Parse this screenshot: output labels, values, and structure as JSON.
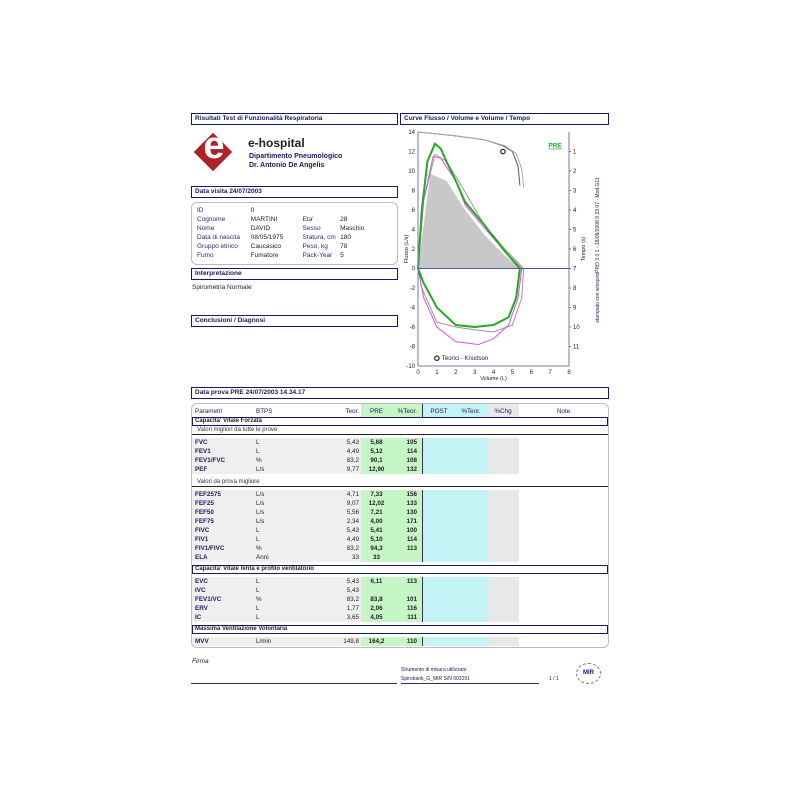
{
  "header": {
    "left_title": "Risultati Test di Funzionalità Respiratoria",
    "right_title": "Curve Flusso / Volume e Volume / Tempo"
  },
  "hospital": {
    "logo_letter": "e",
    "name": "e-hospital",
    "department": "Dipartimento Pneumologico",
    "doctor": "Dr. Antonio De Angelis"
  },
  "visit": {
    "title": "Data visita 24/07/2003"
  },
  "patient": [
    [
      "ID",
      "0",
      "",
      ""
    ],
    [
      "Cognome",
      "MARTINI",
      "Eta'",
      "28"
    ],
    [
      "Nome",
      "DAVID",
      "Sesso",
      "Maschio"
    ],
    [
      "Data di nascita",
      "08/05/1975",
      "Statura, cm",
      "180"
    ],
    [
      "Gruppo etnico",
      "Caucasico",
      "Peso, kg",
      "78"
    ],
    [
      "Fumo",
      "Fumatore",
      "Pack-Year",
      "5"
    ]
  ],
  "interpretation": {
    "title": "Interpretazione",
    "text": "Spirometria Normale"
  },
  "conclusions": {
    "title": "Conclusioni / Diagnosi"
  },
  "chart_data": {
    "type": "line",
    "xlabel": "Volume (L)",
    "ylabel": "Flusso (L/s)",
    "y2label": "Tempo (s)",
    "xlim": [
      0,
      8
    ],
    "ylim": [
      -10,
      14
    ],
    "y2lim": [
      0,
      12
    ],
    "y2_inverted": true,
    "xticks": [
      "0",
      "1",
      "2",
      "3",
      "4",
      "5",
      "6",
      "7",
      "8"
    ],
    "yticks": [
      "14",
      "12",
      "10",
      "8",
      "6",
      "4",
      "2",
      "0",
      "-2",
      "-4",
      "-6",
      "-8",
      "-10"
    ],
    "y2ticks": [
      "1",
      "2",
      "3",
      "4",
      "5",
      "6",
      "7",
      "8",
      "9",
      "10",
      "11"
    ],
    "legend_label": "PRE",
    "legend_color": "#22aa22",
    "marker_label": "Teorici - Knudson",
    "side_text": "stampato con winspiroPRO 3.0.1 - 18/09/2008 9.23.07 - Mod.G11",
    "series": [
      {
        "color": "#c8c8c8",
        "fill": true,
        "points": [
          [
            0,
            0
          ],
          [
            0.65,
            9.7
          ],
          [
            1.5,
            9
          ],
          [
            2.5,
            6
          ],
          [
            3.5,
            3.5
          ],
          [
            4.5,
            1.5
          ],
          [
            5.43,
            0
          ]
        ]
      },
      {
        "color": "#999999",
        "points": [
          [
            0,
            0
          ],
          [
            0.3,
            7
          ],
          [
            0.9,
            11.7
          ],
          [
            1.5,
            11
          ],
          [
            2.3,
            8.5
          ],
          [
            3.5,
            4.5
          ],
          [
            4.6,
            2
          ],
          [
            5.6,
            0
          ],
          [
            5.5,
            -3
          ],
          [
            5,
            -5.8
          ],
          [
            4,
            -6.5
          ],
          [
            3,
            -6.3
          ],
          [
            2,
            -6
          ],
          [
            1,
            -5.5
          ],
          [
            0.2,
            -2
          ],
          [
            0,
            0
          ]
        ]
      },
      {
        "color": "#dd55dd",
        "points": [
          [
            0,
            0
          ],
          [
            0.3,
            7
          ],
          [
            0.8,
            11.5
          ],
          [
            1.2,
            11.3
          ],
          [
            2,
            9
          ],
          [
            2.5,
            6.5
          ],
          [
            3.5,
            4.2
          ],
          [
            4.5,
            2
          ],
          [
            5.5,
            0
          ],
          [
            5.3,
            -3
          ],
          [
            4.8,
            -5.8
          ],
          [
            4,
            -7.2
          ],
          [
            3.2,
            -7.8
          ],
          [
            2,
            -7.5
          ],
          [
            1,
            -6
          ],
          [
            0.3,
            -3
          ],
          [
            0,
            0
          ]
        ]
      },
      {
        "color": "#22aa22",
        "width": 2,
        "points": [
          [
            0,
            0
          ],
          [
            0.2,
            6
          ],
          [
            0.5,
            11
          ],
          [
            0.9,
            12.8
          ],
          [
            1.2,
            12.3
          ],
          [
            1.5,
            11
          ],
          [
            2,
            9
          ],
          [
            2.5,
            6.8
          ],
          [
            3.5,
            4.5
          ],
          [
            4.5,
            2
          ],
          [
            5.4,
            0
          ],
          [
            5.2,
            -3
          ],
          [
            4.8,
            -5
          ],
          [
            4,
            -5.8
          ],
          [
            3,
            -6
          ],
          [
            2,
            -5.8
          ],
          [
            1,
            -4
          ],
          [
            0.3,
            -1.5
          ],
          [
            0,
            0
          ]
        ]
      },
      {
        "color": "#555566",
        "points": [
          [
            0,
            14
          ],
          [
            2,
            13.6
          ],
          [
            3.5,
            13.2
          ],
          [
            4.5,
            12.6
          ],
          [
            5,
            12
          ],
          [
            5.3,
            10.5
          ],
          [
            5.4,
            8.5
          ]
        ]
      },
      {
        "color": "#aaaaaa",
        "points": [
          [
            0,
            14
          ],
          [
            2,
            13.6
          ],
          [
            3.5,
            13.2
          ],
          [
            4.6,
            12.6
          ],
          [
            5.2,
            11.8
          ],
          [
            5.5,
            10.2
          ],
          [
            5.6,
            8.3
          ]
        ]
      }
    ],
    "predicted_marker": [
      4.5,
      12
    ]
  },
  "test": {
    "title": "Data prova PRE 24/07/2003    14.34.17"
  },
  "table": {
    "columns": [
      "Parametri",
      "BTPS",
      "Teor.",
      "PRE",
      "%Teor.",
      "POST",
      "%Teor.",
      "%Chg",
      "Note"
    ],
    "groups": [
      {
        "section": "Capacita' Vitale Forzata",
        "sub": "Valori migliori da tutte le prove",
        "rows": [
          [
            "FVC",
            "L",
            "5,43",
            "5,68",
            "105"
          ],
          [
            "FEV1",
            "L",
            "4,49",
            "5,12",
            "114"
          ],
          [
            "FEV1/FVC",
            "%",
            "83,2",
            "90,1",
            "108"
          ],
          [
            "PEF",
            "L/s",
            "9,77",
            "12,90",
            "132"
          ]
        ]
      },
      {
        "sub": "Valori da prova migliore",
        "rows": [
          [
            "FEF2575",
            "L/s",
            "4,71",
            "7,33",
            "156"
          ],
          [
            "FEF25",
            "L/s",
            "9,07",
            "12,02",
            "133"
          ],
          [
            "FEF50",
            "L/s",
            "5,56",
            "7,21",
            "130"
          ],
          [
            "FEF75",
            "L/s",
            "2,34",
            "4,00",
            "171"
          ],
          [
            "FIVC",
            "L",
            "5,43",
            "5,41",
            "100"
          ],
          [
            "FIV1",
            "L",
            "4,49",
            "5,10",
            "114"
          ],
          [
            "FIV1/FIVC",
            "%",
            "83,2",
            "94,3",
            "113"
          ],
          [
            "ELA",
            "Anni",
            "33",
            "33",
            ""
          ]
        ]
      },
      {
        "section": "Capacita' Vitale lenta e profilo ventilatorio",
        "rows": [
          [
            "EVC",
            "L",
            "5,43",
            "6,11",
            "113"
          ],
          [
            "IVC",
            "L",
            "5,43",
            "",
            ""
          ],
          [
            "FEV1/VC",
            "%",
            "83,2",
            "83,8",
            "101"
          ],
          [
            "ERV",
            "L",
            "1,77",
            "2,06",
            "116"
          ],
          [
            "IC",
            "L",
            "3,65",
            "4,05",
            "111"
          ]
        ]
      },
      {
        "section": "Massima Ventilazione Volontaria",
        "rows": [
          [
            "MVV",
            "L/min",
            "149,8",
            "164,2",
            "110"
          ]
        ]
      }
    ]
  },
  "footer": {
    "signature_label": "Firma",
    "instrument_label": "Strumento di misura utilizzato",
    "instrument": "Spirobank_G_MIR S/N 003291",
    "page": "1 / 1",
    "brand_logo": "MIR"
  }
}
